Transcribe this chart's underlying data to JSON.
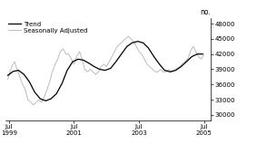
{
  "ylabel": "no.",
  "ylim": [
    29000,
    49000
  ],
  "yticks": [
    30000,
    33000,
    36000,
    39000,
    42000,
    45000,
    48000
  ],
  "xlim_start": 1999.42,
  "xlim_end": 2005.75,
  "xtick_positions": [
    1999.54,
    2001.54,
    2003.54,
    2005.54
  ],
  "xtick_labels": [
    "Jul\n1999",
    "Jul\n2001",
    "Jul\n2003",
    "Jul\n2005"
  ],
  "legend_labels": [
    "Trend",
    "Seasonally Adjusted"
  ],
  "trend_color": "#000000",
  "sa_color": "#bbbbbb",
  "background_color": "#ffffff",
  "trend_data_x": [
    1999.5,
    1999.67,
    1999.83,
    2000.0,
    2000.17,
    2000.33,
    2000.5,
    2000.67,
    2000.83,
    2001.0,
    2001.17,
    2001.33,
    2001.5,
    2001.67,
    2001.83,
    2002.0,
    2002.17,
    2002.33,
    2002.5,
    2002.67,
    2002.83,
    2003.0,
    2003.17,
    2003.33,
    2003.5,
    2003.67,
    2003.83,
    2004.0,
    2004.17,
    2004.33,
    2004.5,
    2004.67,
    2004.83,
    2005.0,
    2005.17,
    2005.33,
    2005.5
  ],
  "trend_data_y": [
    37800,
    38600,
    38800,
    38000,
    36500,
    34500,
    33200,
    32800,
    33200,
    34200,
    36200,
    38800,
    40500,
    41000,
    40800,
    40200,
    39500,
    39000,
    38800,
    39200,
    40500,
    42000,
    43500,
    44200,
    44500,
    44200,
    43200,
    41500,
    40000,
    38800,
    38500,
    38800,
    39500,
    40500,
    41500,
    42000,
    42000
  ],
  "sa_data_x": [
    1999.5,
    1999.62,
    1999.71,
    1999.79,
    1999.87,
    1999.96,
    2000.04,
    2000.12,
    2000.21,
    2000.29,
    2000.37,
    2000.46,
    2000.54,
    2000.62,
    2000.71,
    2000.79,
    2000.87,
    2000.96,
    2001.04,
    2001.12,
    2001.21,
    2001.29,
    2001.37,
    2001.46,
    2001.54,
    2001.62,
    2001.71,
    2001.79,
    2001.87,
    2001.96,
    2002.04,
    2002.12,
    2002.21,
    2002.29,
    2002.37,
    2002.46,
    2002.54,
    2002.62,
    2002.71,
    2002.79,
    2002.87,
    2002.96,
    2003.04,
    2003.12,
    2003.21,
    2003.29,
    2003.37,
    2003.46,
    2003.54,
    2003.62,
    2003.71,
    2003.79,
    2003.87,
    2003.96,
    2004.04,
    2004.12,
    2004.21,
    2004.29,
    2004.37,
    2004.46,
    2004.54,
    2004.62,
    2004.71,
    2004.79,
    2004.87,
    2004.96,
    2005.04,
    2005.12,
    2005.21,
    2005.29,
    2005.37,
    2005.46,
    2005.54
  ],
  "sa_data_y": [
    37000,
    39500,
    40500,
    39000,
    37500,
    36000,
    35000,
    33000,
    32500,
    32000,
    32500,
    33000,
    32500,
    33500,
    35000,
    36500,
    38500,
    40000,
    41000,
    42500,
    43000,
    42000,
    42000,
    41000,
    40000,
    41500,
    42500,
    41000,
    39000,
    38500,
    39000,
    38500,
    38000,
    38500,
    39500,
    40000,
    39500,
    40500,
    41500,
    42500,
    43500,
    44000,
    44500,
    45000,
    45500,
    45000,
    44500,
    43500,
    42500,
    42000,
    41000,
    40000,
    39500,
    39000,
    38500,
    38500,
    39000,
    38500,
    38500,
    39000,
    38500,
    38800,
    39200,
    39500,
    40000,
    40500,
    41000,
    42500,
    43500,
    42500,
    41500,
    41000,
    42000
  ]
}
